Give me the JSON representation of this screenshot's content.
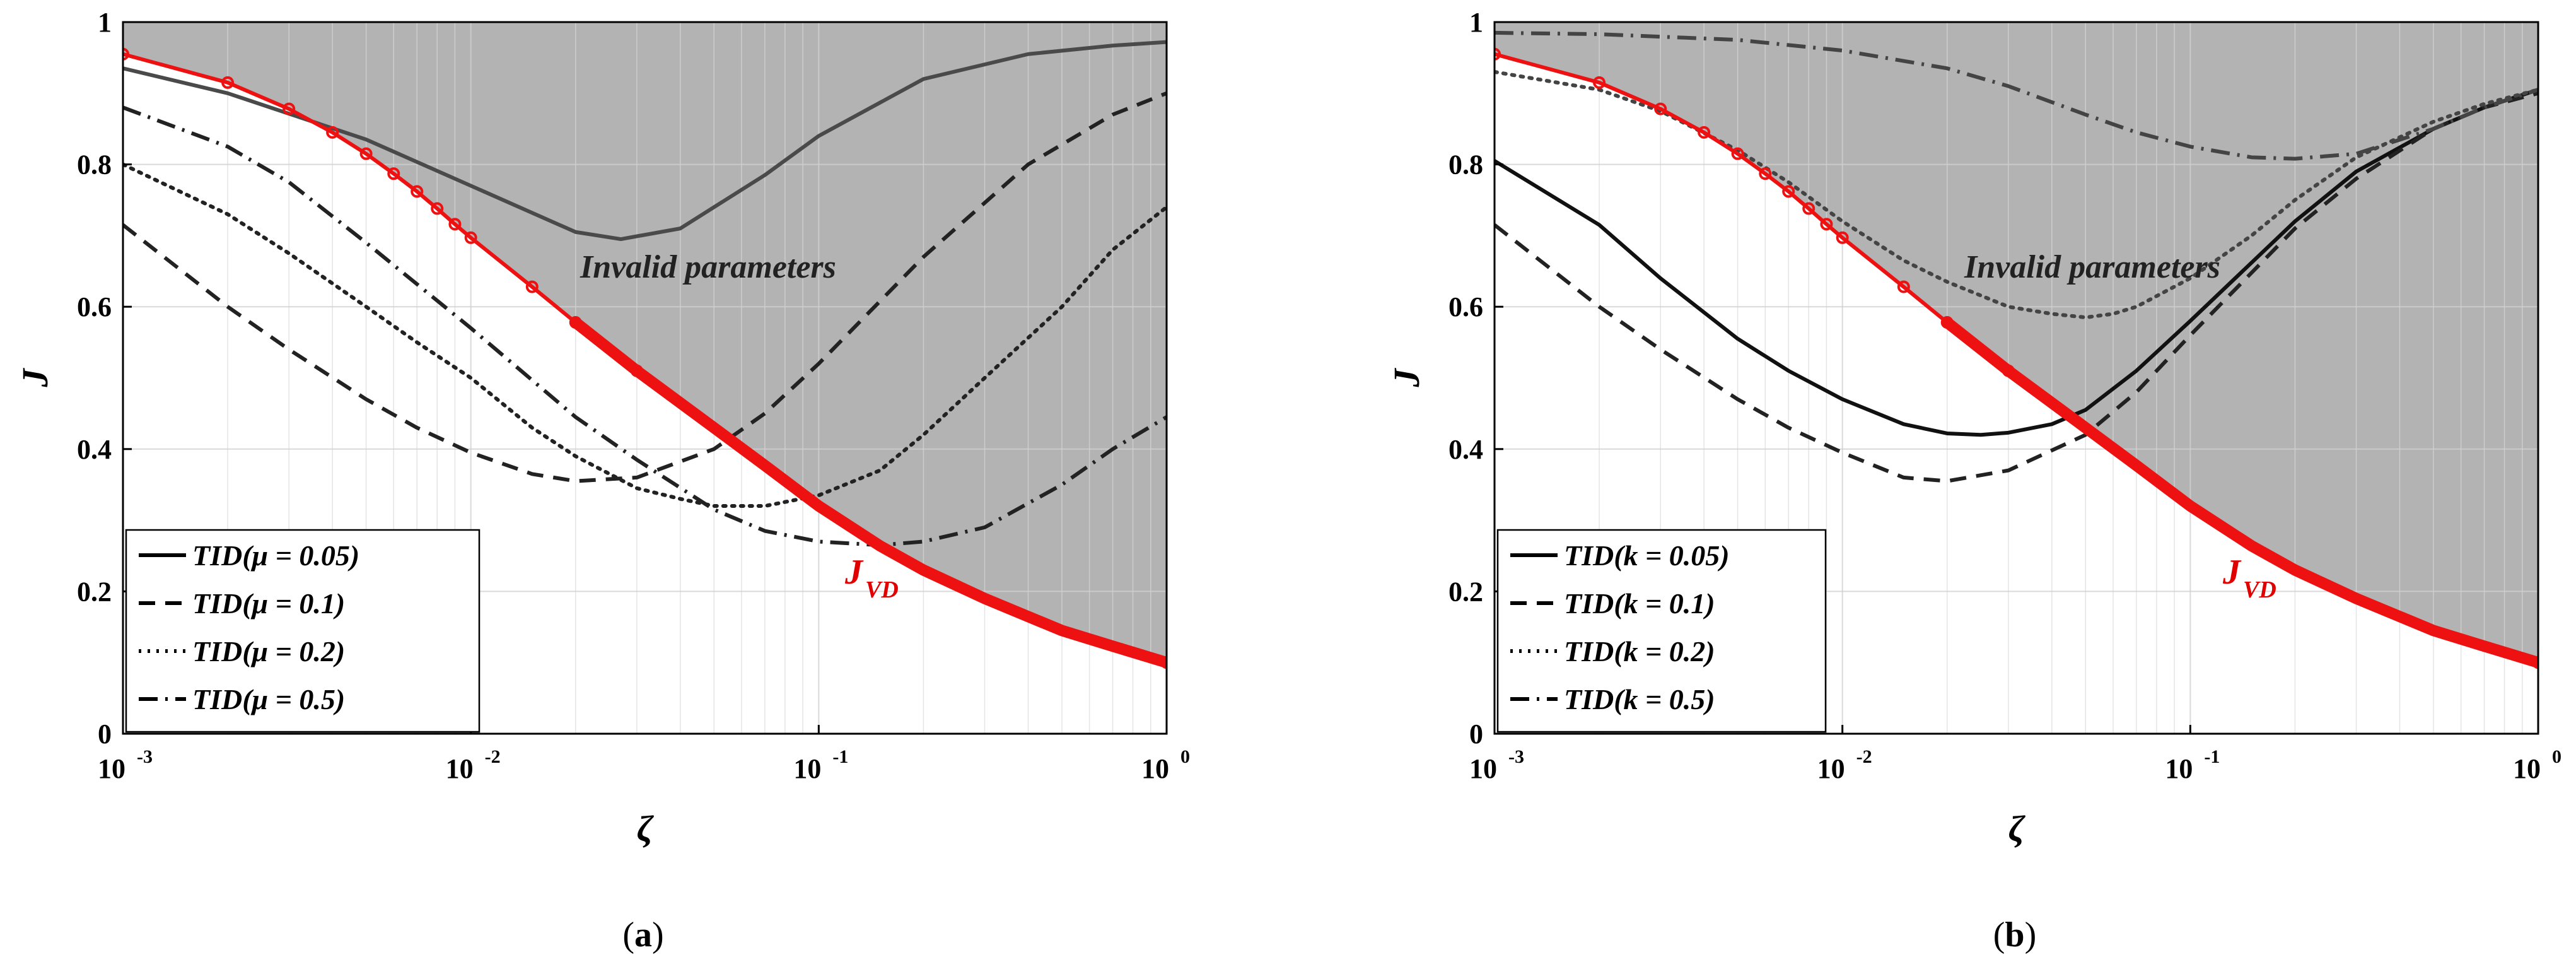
{
  "chart_data": [
    {
      "panel": "a",
      "type": "line",
      "caption_letter": "a",
      "xlabel": "ζ",
      "ylabel": "J",
      "x_scale": "log",
      "xlim": [
        0.001,
        1
      ],
      "ylim": [
        0,
        1
      ],
      "x_ticks": [
        {
          "base": "10",
          "exp": "-3"
        },
        {
          "base": "10",
          "exp": "-2"
        },
        {
          "base": "10",
          "exp": "-1"
        },
        {
          "base": "10",
          "exp": "0"
        }
      ],
      "y_ticks": [
        "0",
        "0.2",
        "0.4",
        "0.6",
        "0.8",
        "1"
      ],
      "region_label": "Invalid parameters",
      "jvd_label": {
        "main": "J",
        "sub": "VD"
      },
      "jvd_x": [
        0.001,
        0.002,
        0.003,
        0.004,
        0.005,
        0.006,
        0.007,
        0.008,
        0.009,
        0.01,
        0.015,
        0.02,
        0.03,
        0.05,
        0.07,
        0.1,
        0.15,
        0.2,
        0.3,
        0.5,
        0.7,
        1.0
      ],
      "jvd_y": [
        0.955,
        0.915,
        0.878,
        0.845,
        0.815,
        0.787,
        0.762,
        0.738,
        0.716,
        0.697,
        0.628,
        0.578,
        0.51,
        0.43,
        0.377,
        0.32,
        0.264,
        0.23,
        0.19,
        0.145,
        0.123,
        0.1
      ],
      "series": [
        {
          "name": "TID(μ = 0.05)",
          "style": "solid",
          "color": "#4a4a4a",
          "x": [
            0.001,
            0.002,
            0.005,
            0.01,
            0.02,
            0.027,
            0.04,
            0.07,
            0.1,
            0.2,
            0.4,
            0.7,
            1.0
          ],
          "y": [
            0.935,
            0.9,
            0.835,
            0.77,
            0.705,
            0.695,
            0.71,
            0.785,
            0.84,
            0.92,
            0.955,
            0.967,
            0.972
          ]
        },
        {
          "name": "TID(μ = 0.1)",
          "style": "dashed",
          "color": "#222222",
          "x": [
            0.001,
            0.002,
            0.003,
            0.005,
            0.007,
            0.01,
            0.015,
            0.02,
            0.03,
            0.05,
            0.07,
            0.1,
            0.2,
            0.4,
            0.7,
            1.0
          ],
          "y": [
            0.715,
            0.6,
            0.54,
            0.47,
            0.43,
            0.395,
            0.365,
            0.355,
            0.36,
            0.4,
            0.45,
            0.52,
            0.67,
            0.8,
            0.87,
            0.9
          ]
        },
        {
          "name": "TID(μ = 0.2)",
          "style": "dotted",
          "color": "#222222",
          "x": [
            0.001,
            0.002,
            0.003,
            0.005,
            0.007,
            0.01,
            0.015,
            0.02,
            0.03,
            0.04,
            0.05,
            0.07,
            0.1,
            0.15,
            0.2,
            0.3,
            0.5,
            0.7,
            1.0
          ],
          "y": [
            0.8,
            0.73,
            0.675,
            0.6,
            0.55,
            0.5,
            0.43,
            0.39,
            0.345,
            0.33,
            0.32,
            0.32,
            0.335,
            0.37,
            0.42,
            0.5,
            0.6,
            0.68,
            0.74
          ]
        },
        {
          "name": "TID(μ = 0.5)",
          "style": "dashdot",
          "color": "#222222",
          "x": [
            0.001,
            0.002,
            0.003,
            0.005,
            0.01,
            0.02,
            0.03,
            0.05,
            0.07,
            0.1,
            0.15,
            0.2,
            0.3,
            0.5,
            0.7,
            1.0
          ],
          "y": [
            0.88,
            0.825,
            0.775,
            0.69,
            0.57,
            0.445,
            0.385,
            0.315,
            0.285,
            0.27,
            0.265,
            0.27,
            0.29,
            0.35,
            0.4,
            0.445
          ]
        }
      ]
    },
    {
      "panel": "b",
      "type": "line",
      "caption_letter": "b",
      "xlabel": "ζ",
      "ylabel": "J",
      "x_scale": "log",
      "xlim": [
        0.001,
        1
      ],
      "ylim": [
        0,
        1
      ],
      "x_ticks": [
        {
          "base": "10",
          "exp": "-3"
        },
        {
          "base": "10",
          "exp": "-2"
        },
        {
          "base": "10",
          "exp": "-1"
        },
        {
          "base": "10",
          "exp": "0"
        }
      ],
      "y_ticks": [
        "0",
        "0.2",
        "0.4",
        "0.6",
        "0.8",
        "1"
      ],
      "region_label": "Invalid parameters",
      "jvd_label": {
        "main": "J",
        "sub": "VD"
      },
      "jvd_x": [
        0.001,
        0.002,
        0.003,
        0.004,
        0.005,
        0.006,
        0.007,
        0.008,
        0.009,
        0.01,
        0.015,
        0.02,
        0.03,
        0.05,
        0.07,
        0.1,
        0.15,
        0.2,
        0.3,
        0.5,
        0.7,
        1.0
      ],
      "jvd_y": [
        0.955,
        0.915,
        0.878,
        0.845,
        0.815,
        0.787,
        0.762,
        0.738,
        0.716,
        0.697,
        0.628,
        0.578,
        0.51,
        0.43,
        0.377,
        0.32,
        0.264,
        0.23,
        0.19,
        0.145,
        0.123,
        0.1
      ],
      "series": [
        {
          "name": "TID(k = 0.05)",
          "style": "solid",
          "color": "#111111",
          "x": [
            0.001,
            0.002,
            0.003,
            0.005,
            0.007,
            0.01,
            0.015,
            0.02,
            0.025,
            0.03,
            0.04,
            0.05,
            0.07,
            0.1,
            0.2,
            0.3,
            0.5,
            0.7,
            1.0
          ],
          "y": [
            0.805,
            0.715,
            0.64,
            0.555,
            0.51,
            0.47,
            0.435,
            0.422,
            0.42,
            0.423,
            0.435,
            0.455,
            0.51,
            0.58,
            0.72,
            0.79,
            0.85,
            0.88,
            0.905
          ]
        },
        {
          "name": "TID(k = 0.1)",
          "style": "dashed",
          "color": "#222222",
          "x": [
            0.001,
            0.002,
            0.003,
            0.005,
            0.007,
            0.01,
            0.015,
            0.02,
            0.03,
            0.05,
            0.07,
            0.1,
            0.2,
            0.3,
            0.5,
            0.7,
            1.0
          ],
          "y": [
            0.715,
            0.6,
            0.54,
            0.47,
            0.43,
            0.395,
            0.36,
            0.355,
            0.37,
            0.42,
            0.48,
            0.56,
            0.71,
            0.78,
            0.85,
            0.88,
            0.9
          ]
        },
        {
          "name": "TID(k = 0.2)",
          "style": "dotted",
          "color": "#444444",
          "x": [
            0.001,
            0.002,
            0.003,
            0.005,
            0.007,
            0.01,
            0.015,
            0.02,
            0.03,
            0.04,
            0.05,
            0.06,
            0.07,
            0.1,
            0.15,
            0.2,
            0.3,
            0.5,
            0.7,
            1.0
          ],
          "y": [
            0.93,
            0.905,
            0.875,
            0.82,
            0.775,
            0.72,
            0.665,
            0.635,
            0.6,
            0.59,
            0.585,
            0.59,
            0.6,
            0.64,
            0.7,
            0.75,
            0.81,
            0.86,
            0.885,
            0.905
          ]
        },
        {
          "name": "TID(k = 0.5)",
          "style": "dashdot",
          "color": "#444444",
          "x": [
            0.001,
            0.002,
            0.005,
            0.01,
            0.02,
            0.03,
            0.05,
            0.07,
            0.1,
            0.15,
            0.2,
            0.3,
            0.5,
            0.7,
            1.0
          ],
          "y": [
            0.985,
            0.983,
            0.975,
            0.96,
            0.935,
            0.91,
            0.87,
            0.845,
            0.825,
            0.81,
            0.808,
            0.815,
            0.85,
            0.88,
            0.905
          ]
        }
      ]
    }
  ]
}
